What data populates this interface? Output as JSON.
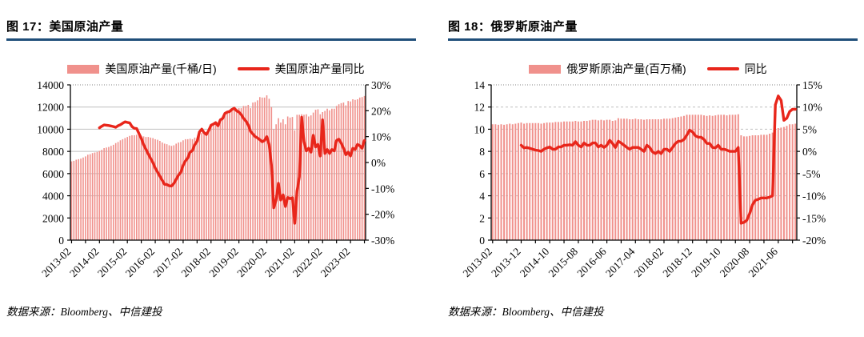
{
  "figures": [
    {
      "title": "图 17：美国原油产量",
      "source": "数据来源：Bloomberg、中信建投",
      "legend": [
        {
          "label": "美国原油产量(千桶/日)",
          "marker": "bar"
        },
        {
          "label": "美国原油产量同比",
          "marker": "line"
        }
      ]
    },
    {
      "title": "图 18：俄罗斯原油产量",
      "source": "数据来源：Bloomberg、中信建投",
      "legend": [
        {
          "label": "俄罗斯原油产量(百万桶)",
          "marker": "bar"
        },
        {
          "label": "同比",
          "marker": "line"
        }
      ]
    }
  ],
  "colors": {
    "title_rule": "#1F4E79",
    "bar": "#F0918C",
    "line": "#E8261B"
  },
  "chart_data": [
    {
      "type": "bar+line",
      "title": "美国原油产量",
      "x_start": "2013-02",
      "x_tick_labels": [
        "2013-02",
        "2014-02",
        "2015-02",
        "2016-02",
        "2017-02",
        "2018-02",
        "2019-02",
        "2020-02",
        "2021-02",
        "2022-02",
        "2023-02"
      ],
      "tick_every_months": 12,
      "grid_style": "solid",
      "left_axis": {
        "min": 0,
        "max": 14000,
        "step": 2000,
        "series": "美国原油产量(千桶/日)"
      },
      "right_axis": {
        "min": -30,
        "max": 30,
        "step": 10,
        "unit": "%",
        "series": "美国原油产量同比"
      },
      "colors": {
        "bar": "#F0918C",
        "line": "#E8261B"
      },
      "bar_series": {
        "name": "美国原油产量(千桶/日)",
        "values": [
          7100,
          7150,
          7250,
          7300,
          7350,
          7450,
          7550,
          7700,
          7750,
          7850,
          7900,
          7950,
          8050,
          8150,
          8300,
          8350,
          8400,
          8500,
          8600,
          8750,
          8850,
          9000,
          9100,
          9200,
          9300,
          9400,
          9450,
          9450,
          9500,
          9450,
          9400,
          9350,
          9300,
          9300,
          9250,
          9200,
          9100,
          9050,
          8950,
          8800,
          8700,
          8650,
          8550,
          8500,
          8550,
          8700,
          8800,
          8850,
          9000,
          9100,
          9100,
          9150,
          9100,
          9250,
          9250,
          9500,
          9650,
          9700,
          9750,
          9950,
          10300,
          10450,
          10500,
          10450,
          10650,
          10900,
          11300,
          11450,
          11550,
          11900,
          11950,
          11850,
          11900,
          11900,
          12100,
          12100,
          12200,
          11900,
          12400,
          12450,
          12600,
          12900,
          12850,
          12850,
          13050,
          12750,
          12000,
          10000,
          10450,
          11000,
          10600,
          10900,
          10450,
          11150,
          11050,
          11100,
          9900,
          11300,
          11300,
          11350,
          11300,
          11350,
          11150,
          11250,
          11500,
          11750,
          11800,
          11350,
          11550,
          11650,
          11850,
          11700,
          11850,
          11850,
          12100,
          12250,
          12350,
          12400,
          12150,
          12550,
          12500,
          12700,
          12650,
          12700,
          12850,
          12900,
          13000
        ]
      },
      "line_series": {
        "name": "美国原油产量同比",
        "unit": "percent",
        "start_index": 12,
        "values": [
          13.4,
          14.0,
          14.5,
          14.4,
          14.3,
          14.1,
          13.9,
          13.6,
          14.2,
          14.6,
          15.2,
          15.7,
          15.5,
          15.3,
          13.9,
          13.2,
          13.1,
          11.2,
          9.3,
          6.9,
          5.1,
          3.3,
          1.6,
          0.0,
          -2.2,
          -3.7,
          -5.3,
          -6.9,
          -8.4,
          -8.5,
          -9.0,
          -9.1,
          -8.1,
          -6.5,
          -4.9,
          -3.8,
          -1.1,
          0.6,
          1.7,
          4.0,
          4.6,
          6.9,
          8.2,
          11.8,
          12.9,
          11.5,
          10.8,
          12.4,
          14.4,
          14.8,
          15.4,
          14.2,
          16.5,
          17.0,
          19.0,
          19.5,
          19.7,
          20.5,
          21.0,
          20.0,
          19.5,
          18.5,
          17.0,
          16.0,
          14.5,
          12.0,
          11.0,
          10.0,
          9.5,
          8.8,
          8.0,
          8.5,
          10.0,
          7.0,
          -1.0,
          -17.5,
          -14.5,
          -8.0,
          -14.5,
          -12.5,
          -17.0,
          -13.5,
          -14.0,
          -13.6,
          -23.5,
          -11.0,
          -5.5,
          17.5,
          8.0,
          4.5,
          5.5,
          4.0,
          10.5,
          6.0,
          7.0,
          2.5,
          16.5,
          3.5,
          5.0,
          3.5,
          5.0,
          4.5,
          8.5,
          9.0,
          7.5,
          5.5,
          3.0,
          4.0,
          2.5,
          5.5,
          5.0,
          7.0,
          6.5,
          5.5,
          8.5
        ]
      }
    },
    {
      "type": "bar+line",
      "title": "俄罗斯原油产量",
      "x_start": "2013-02",
      "x_tick_labels": [
        "2013-02",
        "2013-12",
        "2014-10",
        "2015-08",
        "2016-06",
        "2017-04",
        "2018-02",
        "2018-12",
        "2019-10",
        "2020-08",
        "2021-06"
      ],
      "tick_every_months": 10,
      "grid_style": "dashed",
      "left_axis": {
        "min": 0,
        "max": 14,
        "step": 2,
        "series": "俄罗斯原油产量(百万桶)"
      },
      "right_axis": {
        "min": -20,
        "max": 15,
        "step": 5,
        "unit": "%",
        "series": "同比"
      },
      "colors": {
        "bar": "#F0918C",
        "line": "#E8261B"
      },
      "bar_series": {
        "name": "俄罗斯原油产量(百万桶)",
        "values": [
          10.45,
          10.45,
          10.4,
          10.45,
          10.4,
          10.45,
          10.5,
          10.45,
          10.5,
          10.55,
          10.6,
          10.5,
          10.55,
          10.55,
          10.55,
          10.55,
          10.55,
          10.5,
          10.55,
          10.6,
          10.6,
          10.6,
          10.65,
          10.65,
          10.65,
          10.7,
          10.7,
          10.7,
          10.7,
          10.75,
          10.7,
          10.7,
          10.75,
          10.75,
          10.8,
          10.85,
          10.85,
          10.8,
          10.85,
          10.8,
          10.85,
          10.85,
          10.75,
          10.8,
          11.0,
          10.95,
          10.95,
          10.95,
          10.9,
          10.9,
          10.95,
          10.9,
          10.9,
          10.85,
          10.9,
          10.9,
          10.9,
          10.9,
          10.9,
          10.9,
          10.95,
          10.95,
          10.95,
          11.0,
          11.05,
          11.1,
          11.15,
          11.2,
          11.3,
          11.3,
          11.3,
          11.3,
          11.3,
          11.3,
          11.25,
          11.2,
          11.25,
          11.2,
          11.25,
          11.3,
          11.3,
          11.3,
          11.25,
          11.3,
          11.3,
          11.3,
          11.35,
          9.45,
          9.35,
          9.35,
          9.4,
          9.45,
          9.45,
          9.45,
          9.5,
          9.5,
          9.5,
          9.6,
          9.7,
          10.0,
          10.1,
          10.15,
          10.2,
          10.3,
          10.45,
          10.45,
          10.5
        ]
      },
      "line_series": {
        "name": "同比",
        "unit": "percent",
        "start_index": 10,
        "values": [
          1.4,
          0.8,
          0.9,
          0.7,
          0.5,
          0.3,
          0.2,
          0.0,
          0.5,
          0.8,
          1.0,
          0.5,
          0.5,
          1.0,
          1.0,
          1.4,
          1.4,
          1.5,
          1.4,
          2.2,
          1.4,
          1.0,
          1.9,
          1.4,
          1.4,
          1.9,
          1.9,
          1.0,
          1.4,
          0.9,
          1.4,
          2.5,
          1.8,
          0.9,
          2.3,
          1.9,
          1.4,
          0.9,
          0.5,
          0.9,
          0.9,
          0.9,
          0.5,
          0.0,
          1.4,
          0.9,
          -0.1,
          -0.5,
          0.0,
          -0.5,
          0.5,
          0.5,
          0.0,
          0.9,
          1.8,
          2.3,
          2.3,
          2.7,
          3.7,
          4.8,
          4.4,
          3.5,
          3.2,
          3.2,
          2.7,
          1.8,
          1.8,
          0.9,
          0.8,
          1.4,
          0.5,
          0.5,
          0.3,
          0.0,
          0.0,
          0.0,
          0.9,
          -16.2,
          -16.0,
          -15.5,
          -14.0,
          -12.0,
          -11.0,
          -10.8,
          -10.5,
          -10.5,
          -10.5,
          -10.3,
          -10.0,
          10.5,
          12.5,
          11.5,
          7.0,
          7.5,
          9.0,
          9.5,
          9.5
        ]
      }
    }
  ]
}
